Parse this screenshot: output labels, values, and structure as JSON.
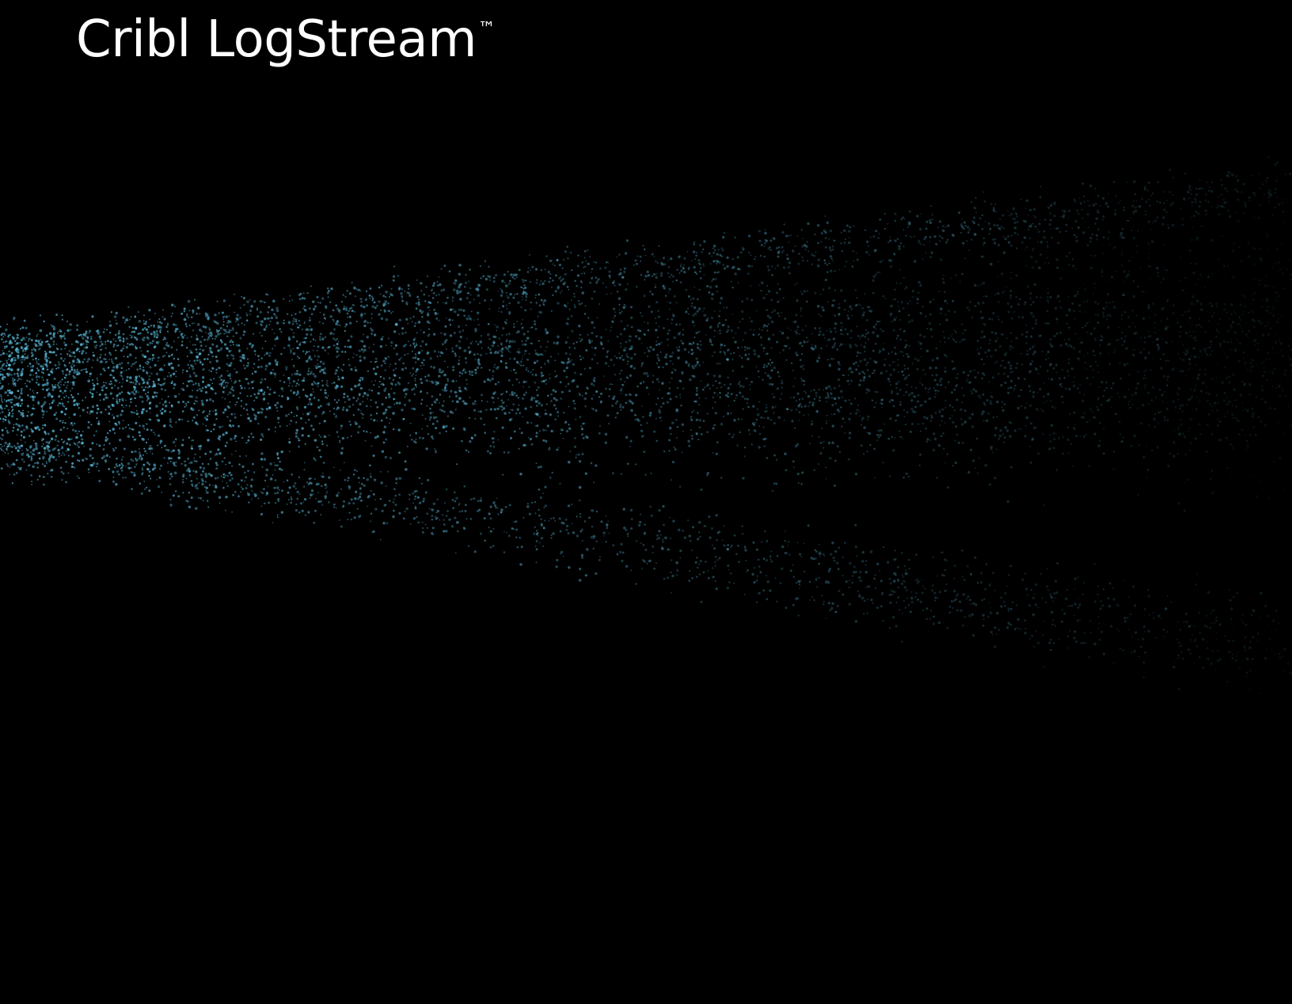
{
  "title": {
    "brand": "Cribl LogStream",
    "trademark": "™"
  },
  "colors": {
    "background": "#000000",
    "title_text": "#ffffff",
    "particle": "#5ec4e6"
  },
  "artwork": {
    "description_icon": "particle-stream-graphic"
  }
}
